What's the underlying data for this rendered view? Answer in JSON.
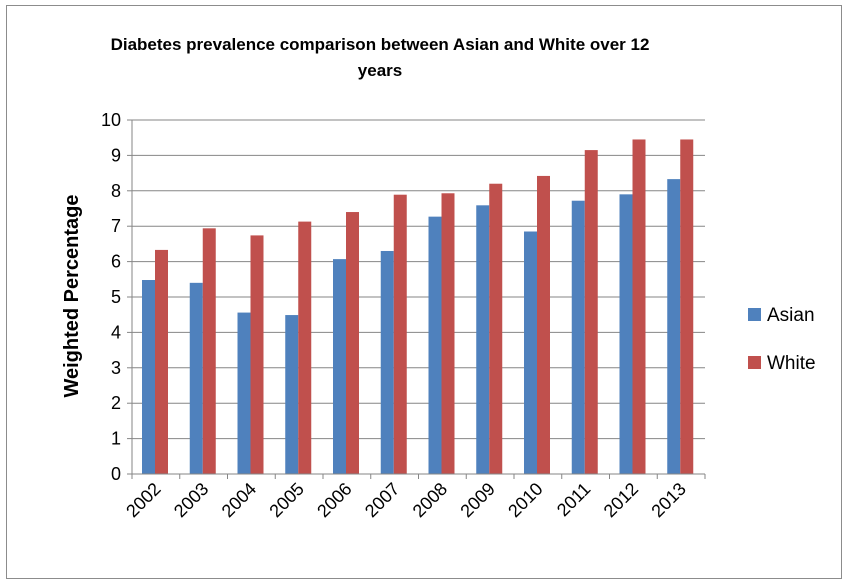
{
  "chart_data": {
    "type": "bar",
    "title": "Diabetes prevalence comparison between Asian and White over 12 years",
    "xlabel": "",
    "ylabel": "Weighted Percentage",
    "ylim": [
      0,
      10
    ],
    "yticks": [
      0,
      1,
      2,
      3,
      4,
      5,
      6,
      7,
      8,
      9,
      10
    ],
    "grid": true,
    "legend_position": "right",
    "categories": [
      "2002",
      "2003",
      "2004",
      "2005",
      "2006",
      "2007",
      "2008",
      "2009",
      "2010",
      "2011",
      "2012",
      "2013"
    ],
    "series": [
      {
        "name": "Asian",
        "color": "#4f81bd",
        "values": [
          5.48,
          5.4,
          4.56,
          4.49,
          6.07,
          6.3,
          7.27,
          7.59,
          6.85,
          7.72,
          7.9,
          8.33
        ]
      },
      {
        "name": "White",
        "color": "#c0504d",
        "values": [
          6.33,
          6.94,
          6.74,
          7.13,
          7.4,
          7.89,
          7.93,
          8.2,
          8.42,
          9.15,
          9.45,
          9.45
        ]
      }
    ]
  }
}
